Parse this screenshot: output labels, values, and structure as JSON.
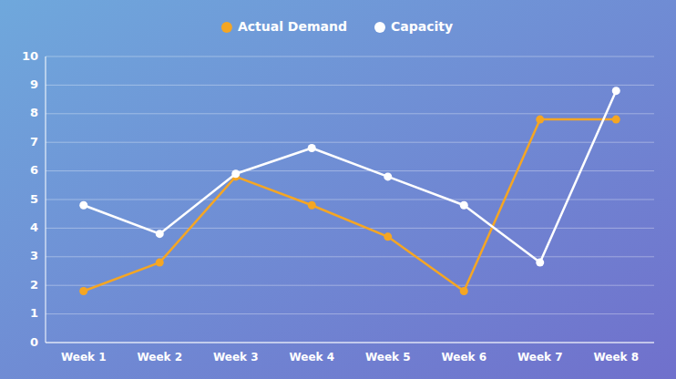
{
  "chart_data": {
    "type": "line",
    "categories": [
      "Week 1",
      "Week 2",
      "Week 3",
      "Week 4",
      "Week 5",
      "Week 6",
      "Week 7",
      "Week 8"
    ],
    "series": [
      {
        "name": "Actual Demand",
        "color": "#F5A623",
        "marker": "circle",
        "values": [
          1.8,
          2.8,
          5.8,
          4.8,
          3.7,
          1.8,
          7.8,
          7.8
        ]
      },
      {
        "name": "Capacity",
        "color": "#FFFFFF",
        "marker": "circle",
        "values": [
          4.8,
          3.8,
          5.9,
          6.8,
          5.8,
          4.8,
          2.8,
          8.8
        ]
      }
    ],
    "ylim": [
      0,
      10
    ],
    "yticks": [
      0,
      1,
      2,
      3,
      4,
      5,
      6,
      7,
      8,
      9,
      10
    ],
    "grid": true,
    "legend": "top"
  }
}
